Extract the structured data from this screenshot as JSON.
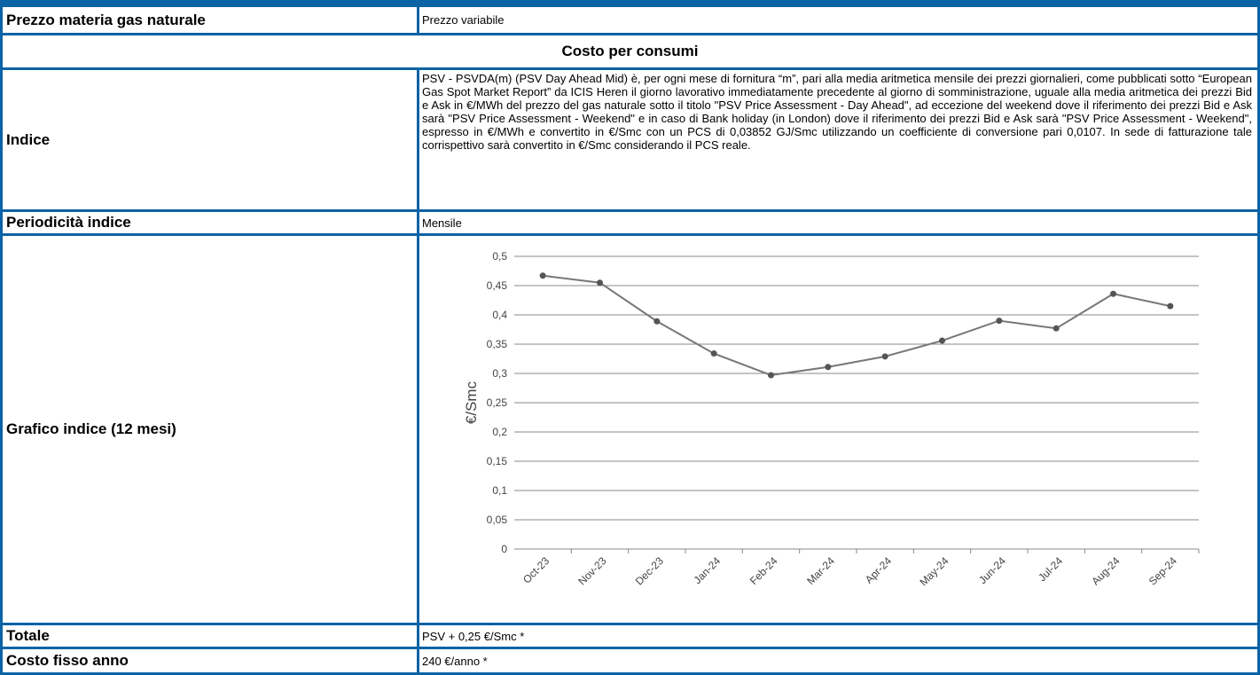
{
  "rows": [
    {
      "label": "Prezzo materia gas naturale",
      "value": "Prezzo variabile"
    },
    {
      "section": "Costo per consumi"
    },
    {
      "label": "Indice",
      "value": "PSV - PSVDA(m) (PSV Day Ahead Mid) è, per ogni mese di fornitura “m”, pari alla media aritmetica mensile dei prezzi giornalieri, come pubblicati sotto “European Gas Spot Market Report” da ICIS Heren il giorno lavorativo immediatamente precedente al giorno di somministrazione, uguale alla media aritmetica dei prezzi Bid e Ask in €/MWh del prezzo del gas naturale sotto il titolo \"PSV Price Assessment - Day Ahead\", ad eccezione del weekend dove il riferimento dei prezzi Bid e Ask sarà \"PSV Price Assessment - Weekend\" e in caso di Bank holiday (in London) dove il riferimento dei prezzi Bid e Ask sarà \"PSV Price Assessment - Weekend\", espresso in €/MWh e convertito in €/Smc con un PCS di 0,03852 GJ/Smc utilizzando un coefficiente di conversione pari 0,0107. In sede di fatturazione tale corrispettivo sarà convertito in €/Smc considerando il PCS reale."
    },
    {
      "label": "Periodicità indice",
      "value": "Mensile"
    },
    {
      "label": "Grafico indice (12 mesi)"
    },
    {
      "label": "Totale",
      "value": "PSV + 0,25 €/Smc *"
    },
    {
      "label": "Costo fisso anno",
      "value": "240 €/anno *"
    }
  ],
  "chart_data": {
    "type": "line",
    "y_label": "€/Smc",
    "categories": [
      "Oct-23",
      "Nov-23",
      "Dec-23",
      "Jan-24",
      "Feb-24",
      "Mar-24",
      "Apr-24",
      "May-24",
      "Jun-24",
      "Jul-24",
      "Aug-24",
      "Sep-24"
    ],
    "values": [
      0.467,
      0.455,
      0.389,
      0.334,
      0.297,
      0.311,
      0.329,
      0.356,
      0.39,
      0.377,
      0.436,
      0.415
    ],
    "color": "#777777",
    "marker_color": "#555555",
    "ylim": [
      0,
      0.5
    ],
    "yticks": [
      0,
      {
        "value": 0.05,
        "label": "0,05"
      },
      {
        "value": 0.1,
        "label": "0,1"
      },
      {
        "value": 0.15,
        "label": "0,15"
      },
      {
        "value": 0.2,
        "label": "0,2"
      },
      {
        "value": 0.25,
        "label": "0,25"
      },
      {
        "value": 0.3,
        "label": "0,3"
      },
      {
        "value": 0.35,
        "label": "0,35"
      },
      {
        "value": 0.4,
        "label": "0,4"
      },
      {
        "value": 0.45,
        "label": "0,45"
      },
      {
        "value": 0.5,
        "label": "0,5"
      }
    ],
    "grid": true
  }
}
